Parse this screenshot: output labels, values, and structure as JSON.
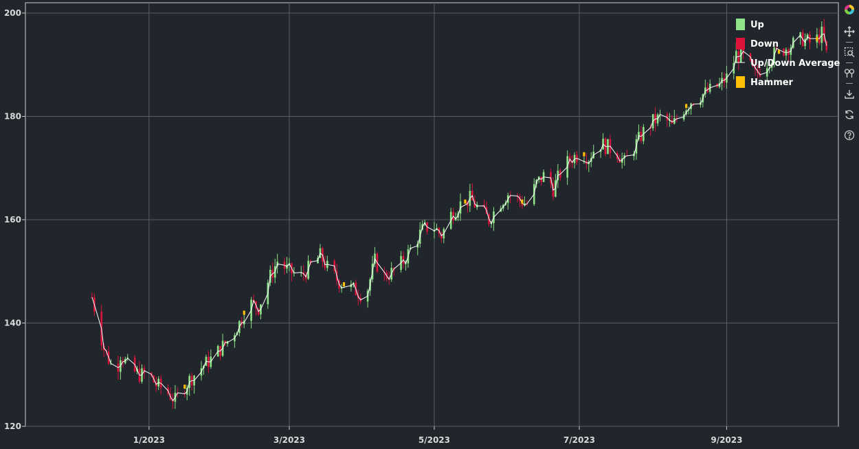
{
  "colors": {
    "background": "#20262b",
    "grid": "#5a5f63",
    "axis": "#cfcfcf",
    "up": "#8fe388",
    "down": "#dc143c",
    "average": "#ffffff",
    "hammer": "#ffc107"
  },
  "toolbar": {
    "icons": [
      "bokeh-logo-icon",
      "pan-icon",
      "box-zoom-icon",
      "wheel-zoom-icon",
      "save-icon",
      "reset-icon",
      "help-icon"
    ]
  },
  "chart_data": {
    "type": "candlestick",
    "title": "",
    "xlabel": "",
    "ylabel": "",
    "ylim": [
      120,
      200
    ],
    "y_ticks": [
      "120",
      "140",
      "160",
      "180",
      "200"
    ],
    "x_ticks": [
      {
        "date": "2023-01-01",
        "label": "1/2023"
      },
      {
        "date": "2023-03-01",
        "label": "3/2023"
      },
      {
        "date": "2023-05-01",
        "label": "5/2023"
      },
      {
        "date": "2023-07-01",
        "label": "7/2023"
      },
      {
        "date": "2023-09-01",
        "label": "9/2023"
      }
    ],
    "xlim": [
      "2022-11-10",
      "2023-10-18"
    ],
    "legend": {
      "placement": "top-right",
      "items": [
        {
          "label": "Up",
          "kind": "box",
          "color": "#8fe388"
        },
        {
          "label": "Down",
          "kind": "box",
          "color": "#dc143c"
        },
        {
          "label": "Up/Down Average",
          "kind": "line",
          "color": "#ffffff"
        },
        {
          "label": "Hammer",
          "kind": "box",
          "color": "#ffc107"
        }
      ]
    },
    "price_path": [
      [
        "2022-12-08",
        145
      ],
      [
        "2022-12-13",
        135
      ],
      [
        "2022-12-18",
        130
      ],
      [
        "2022-12-20",
        134
      ],
      [
        "2022-12-24",
        131
      ],
      [
        "2022-12-28",
        130
      ],
      [
        "2023-01-01",
        130
      ],
      [
        "2023-01-04",
        128
      ],
      [
        "2023-01-08",
        127
      ],
      [
        "2023-01-12",
        125
      ],
      [
        "2023-01-18",
        129
      ],
      [
        "2023-01-22",
        131
      ],
      [
        "2023-01-27",
        133
      ],
      [
        "2023-01-31",
        135
      ],
      [
        "2023-02-04",
        137
      ],
      [
        "2023-02-08",
        140
      ],
      [
        "2023-02-12",
        144
      ],
      [
        "2023-02-16",
        143
      ],
      [
        "2023-02-20",
        148
      ],
      [
        "2023-02-24",
        152
      ],
      [
        "2023-03-01",
        150
      ],
      [
        "2023-03-06",
        149
      ],
      [
        "2023-03-10",
        151
      ],
      [
        "2023-03-14",
        153
      ],
      [
        "2023-03-18",
        150
      ],
      [
        "2023-03-22",
        148
      ],
      [
        "2023-03-26",
        147
      ],
      [
        "2023-03-30",
        146
      ],
      [
        "2023-04-02",
        145
      ],
      [
        "2023-04-06",
        152
      ],
      [
        "2023-04-10",
        149
      ],
      [
        "2023-04-14",
        150
      ],
      [
        "2023-04-18",
        152
      ],
      [
        "2023-04-22",
        155
      ],
      [
        "2023-04-26",
        158
      ],
      [
        "2023-04-30",
        159
      ],
      [
        "2023-05-04",
        157
      ],
      [
        "2023-05-08",
        161
      ],
      [
        "2023-05-12",
        163
      ],
      [
        "2023-05-16",
        164
      ],
      [
        "2023-05-20",
        162
      ],
      [
        "2023-05-24",
        160
      ],
      [
        "2023-05-28",
        163
      ],
      [
        "2023-06-01",
        165
      ],
      [
        "2023-06-05",
        164
      ],
      [
        "2023-06-09",
        163
      ],
      [
        "2023-06-13",
        167
      ],
      [
        "2023-06-17",
        169
      ],
      [
        "2023-06-20",
        166
      ],
      [
        "2023-06-24",
        170
      ],
      [
        "2023-06-28",
        172
      ],
      [
        "2023-07-02",
        173
      ],
      [
        "2023-07-05",
        172
      ],
      [
        "2023-07-09",
        175
      ],
      [
        "2023-07-13",
        174
      ],
      [
        "2023-07-17",
        173
      ],
      [
        "2023-07-20",
        171
      ],
      [
        "2023-07-24",
        174
      ],
      [
        "2023-07-28",
        177
      ],
      [
        "2023-08-01",
        179
      ],
      [
        "2023-08-05",
        180
      ],
      [
        "2023-08-09",
        178
      ],
      [
        "2023-08-13",
        181
      ],
      [
        "2023-08-17",
        183
      ],
      [
        "2023-08-21",
        184
      ],
      [
        "2023-08-25",
        185
      ],
      [
        "2023-08-29",
        186
      ],
      [
        "2023-09-02",
        188
      ],
      [
        "2023-09-05",
        192
      ],
      [
        "2023-09-09",
        191
      ],
      [
        "2023-09-13",
        188
      ],
      [
        "2023-09-17",
        190
      ],
      [
        "2023-09-21",
        192
      ],
      [
        "2023-09-25",
        193
      ],
      [
        "2023-09-29",
        194
      ],
      [
        "2023-10-03",
        195
      ],
      [
        "2023-10-07",
        194
      ],
      [
        "2023-10-11",
        196
      ],
      [
        "2023-10-14",
        190
      ]
    ],
    "hammer_dates": [
      "2023-01-16",
      "2023-02-10",
      "2023-03-24",
      "2023-05-14",
      "2023-06-07",
      "2023-07-03",
      "2023-08-15",
      "2023-09-23",
      "2023-10-09"
    ]
  }
}
